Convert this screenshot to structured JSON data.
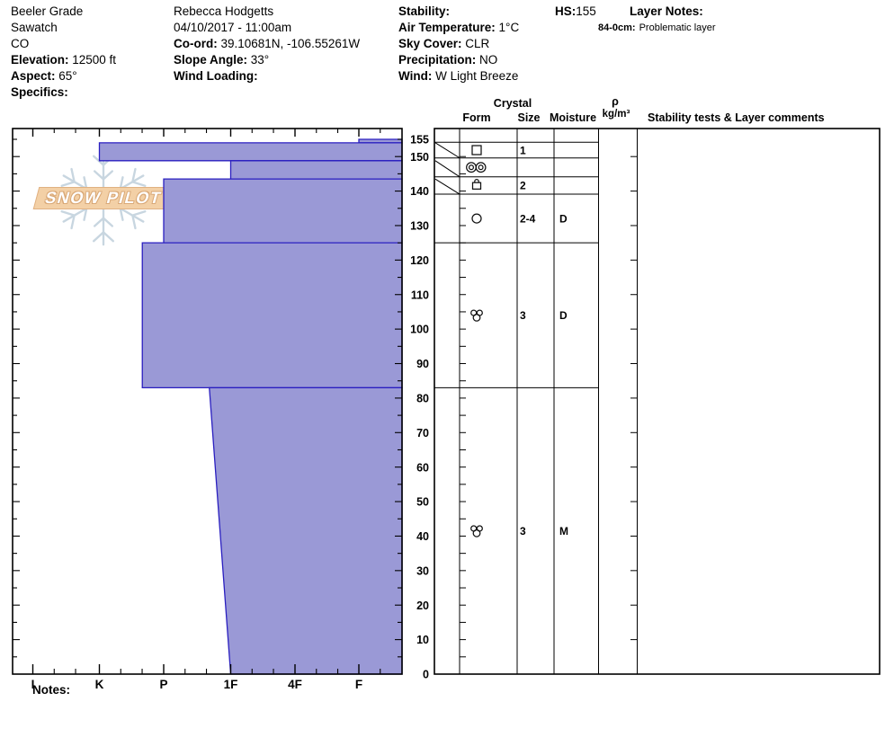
{
  "header": {
    "col1": [
      {
        "label": "",
        "value": "Beeler Grade"
      },
      {
        "label": "",
        "value": "Sawatch"
      },
      {
        "label": "",
        "value": "CO"
      },
      {
        "label": "Elevation:",
        "value": "12500 ft"
      },
      {
        "label": "Aspect:",
        "value": "65°"
      },
      {
        "label": "Specifics:",
        "value": ""
      }
    ],
    "col2": [
      {
        "label": "",
        "value": "Rebecca Hodgetts"
      },
      {
        "label": "",
        "value": "04/10/2017 - 11:00am"
      },
      {
        "label": "Co-ord:",
        "value": "39.10681N, -106.55261W"
      },
      {
        "label": "Slope Angle:",
        "value": "33°"
      },
      {
        "label": "Wind Loading:",
        "value": ""
      }
    ],
    "col3": [
      {
        "label": "Stability:",
        "value": ""
      },
      {
        "label": "Air Temperature:",
        "value": "1°C"
      },
      {
        "label": "Sky Cover:",
        "value": "CLR"
      },
      {
        "label": "Precipitation:",
        "value": "NO"
      },
      {
        "label": "Wind:",
        "value": "W Light Breeze"
      }
    ],
    "hs_label": "HS:",
    "hs_value": "155",
    "layer_notes_label": "Layer Notes:",
    "layer_note": {
      "label": "84-0cm:",
      "value": "Problematic layer"
    }
  },
  "watermark": {
    "text": "SNOW PILOT",
    "icon": "snowflake-icon"
  },
  "chart_data": {
    "type": "bar",
    "subtype": "snow-hardness-profile",
    "orientation": "horizontal-bars-by-depth",
    "hardness_axis": {
      "categories": [
        "I",
        "K",
        "P",
        "1F",
        "4F",
        "F"
      ],
      "note": "hand hardness, hard (I) at left to soft (F) at right; bars extend left from soft edge"
    },
    "depth_axis": {
      "unit": "cm",
      "max": 155,
      "tick_labels": [
        155,
        150,
        140,
        130,
        120,
        110,
        100,
        90,
        80,
        70,
        60,
        50,
        40,
        30,
        20,
        10,
        0
      ]
    },
    "hs_total_depth_cm": 155,
    "layers": [
      {
        "top_cm": 155,
        "bottom_cm": 154,
        "hardness": "F",
        "form_symbol": "square-facets",
        "grain_size_mm": "1",
        "moisture": "",
        "density": "",
        "comments": ""
      },
      {
        "top_cm": 154,
        "bottom_cm": 148.8,
        "hardness": "K",
        "form_symbol": "double-circle-crust",
        "grain_size_mm": "",
        "moisture": "",
        "density": "",
        "comments": ""
      },
      {
        "top_cm": 148.8,
        "bottom_cm": 143.5,
        "hardness": "1F",
        "form_symbol": "capped-square",
        "grain_size_mm": "2",
        "moisture": "",
        "density": "",
        "comments": ""
      },
      {
        "top_cm": 143.5,
        "bottom_cm": 125,
        "hardness": "P",
        "form_symbol": "circle-rounds",
        "grain_size_mm": "2-4",
        "moisture": "D",
        "density": "",
        "comments": ""
      },
      {
        "top_cm": 125,
        "bottom_cm": 83,
        "hardness": "P+",
        "form_symbol": "cluster-rounds",
        "grain_size_mm": "3",
        "moisture": "D",
        "density": "",
        "comments": ""
      },
      {
        "top_cm": 83,
        "bottom_cm": 0,
        "hardness_top": "1F+",
        "hardness_bottom": "1F",
        "form_symbol": "cluster-rounds",
        "grain_size_mm": "3",
        "moisture": "M",
        "density": "",
        "comments": ""
      }
    ],
    "colors": {
      "layer_fill": "#9a99d6",
      "layer_stroke": "#2a1fc0",
      "axis": "#000000"
    }
  },
  "table": {
    "headers": {
      "crystal": "Crystal",
      "form": "Form",
      "size": "Size",
      "moisture": "Moisture",
      "rho": "ρ",
      "rho_units": "kg/m³",
      "stability": "Stability tests & Layer comments"
    }
  },
  "footer": {
    "notes_label": "Notes:"
  }
}
